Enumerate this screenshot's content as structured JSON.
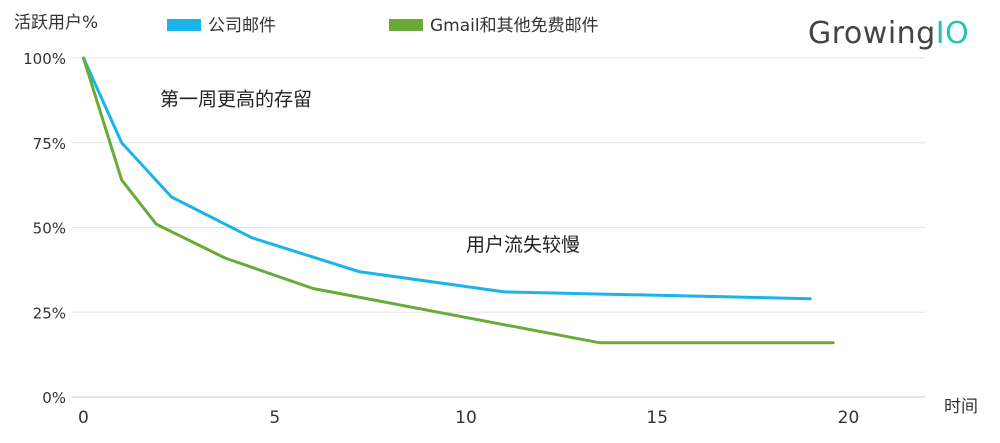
{
  "brand": {
    "prefix": "Growing",
    "suffix": "IO"
  },
  "chart_data": {
    "type": "line",
    "ylabel": "活跃用户%",
    "xlabel": "时间",
    "xlim": [
      -0.3,
      22
    ],
    "ylim": [
      0,
      100
    ],
    "xticks": [
      0,
      5,
      10,
      15,
      20
    ],
    "yticks": [
      0,
      25,
      50,
      75,
      100
    ],
    "yticklabels": [
      "0%",
      "25%",
      "50%",
      "75%",
      "100%"
    ],
    "xticklabels": [
      "0",
      "5",
      "10",
      "15",
      "20"
    ],
    "grid": true,
    "legend_position": "top-left",
    "series": [
      {
        "name": "公司邮件",
        "color": "#1ab4ea",
        "x": [
          0,
          1,
          2.3,
          4.4,
          7.2,
          11,
          19
        ],
        "y": [
          100,
          75,
          59,
          47,
          37,
          31,
          29
        ]
      },
      {
        "name": "Gmail和其他免费邮件",
        "color": "#6aaa39",
        "x": [
          0,
          1,
          1.9,
          3.7,
          6,
          13.5,
          19.6
        ],
        "y": [
          100,
          64,
          51,
          41,
          32,
          16,
          16
        ]
      }
    ],
    "annotations": [
      {
        "text": "第一周更高的存留",
        "x": 2,
        "y": 86
      },
      {
        "text": "用户流失较慢",
        "x": 10,
        "y": 43
      }
    ]
  }
}
